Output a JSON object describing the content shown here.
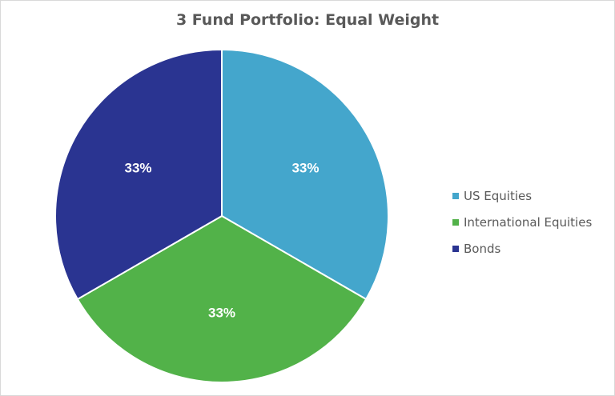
{
  "chart_data": {
    "type": "pie",
    "title": "3 Fund Portfolio: Equal Weight",
    "categories": [
      "US Equities",
      "International Equities",
      "Bonds"
    ],
    "values": [
      33,
      33,
      33
    ],
    "labels": [
      "33%",
      "33%",
      "33%"
    ],
    "colors": [
      "#44a6cc",
      "#52b249",
      "#2a3491"
    ],
    "legend_position": "right",
    "start_angle": "12 o'clock, clockwise"
  },
  "legend": {
    "items": [
      {
        "label": "US Equities",
        "color": "#44a6cc"
      },
      {
        "label": "International Equities",
        "color": "#52b249"
      },
      {
        "label": "Bonds",
        "color": "#2a3491"
      }
    ]
  }
}
